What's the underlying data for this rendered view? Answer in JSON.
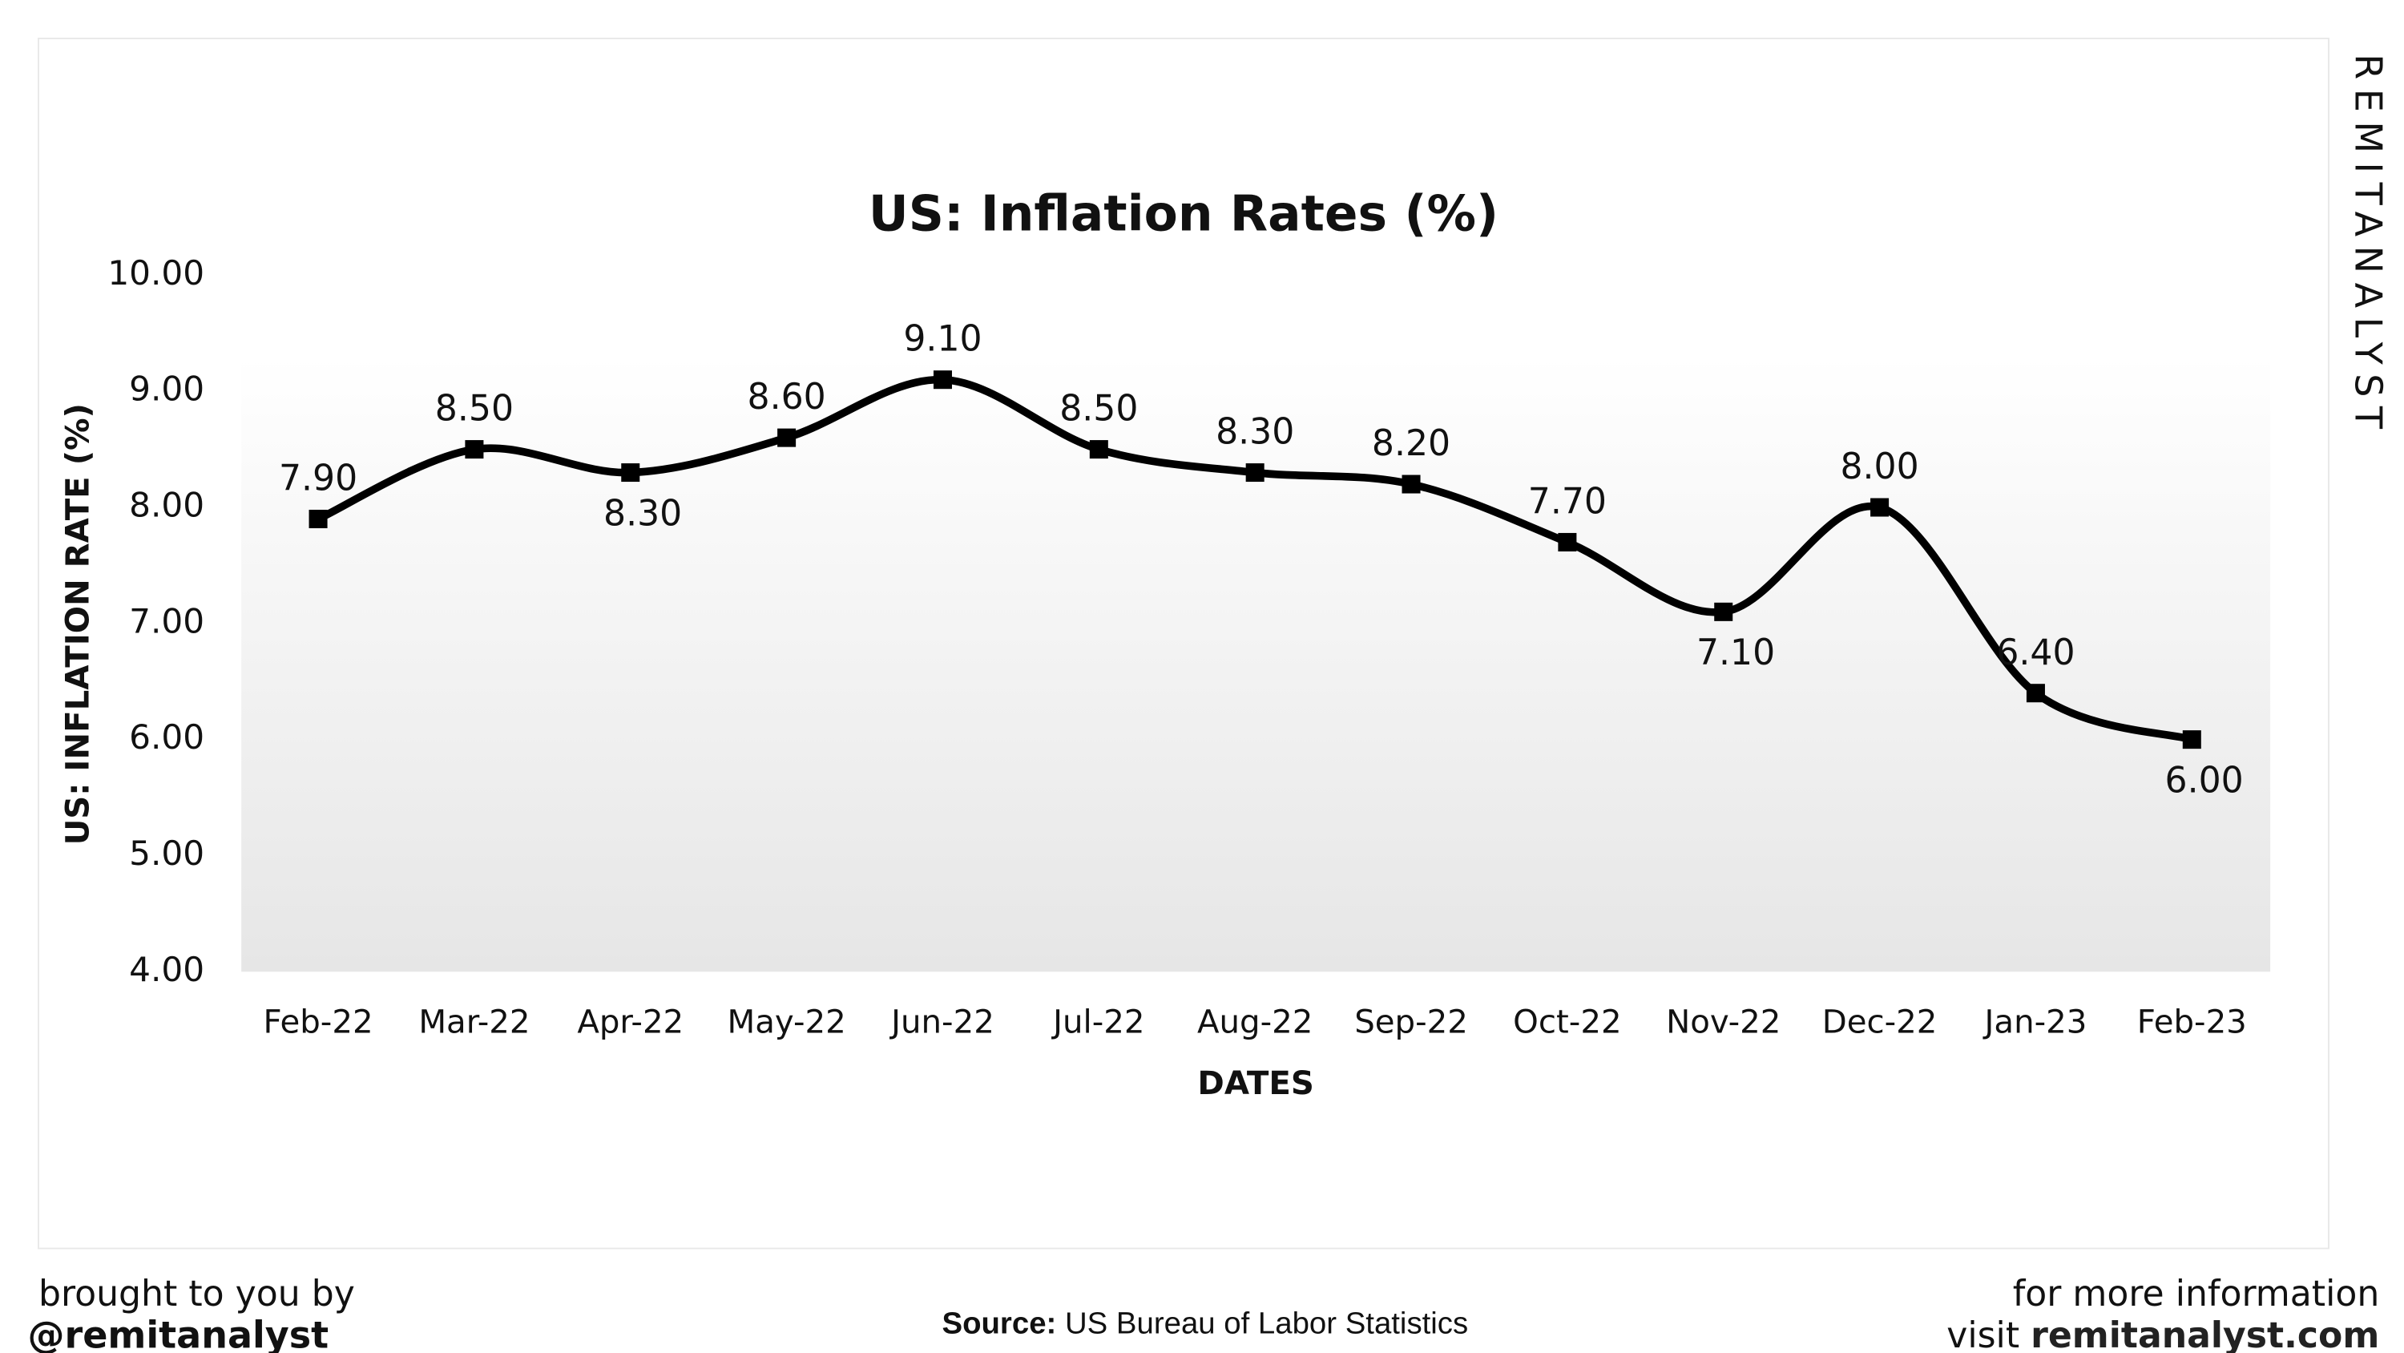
{
  "chart_data": {
    "type": "line",
    "title": "US: Inflation Rates (%)",
    "x_label": "DATES",
    "y_label": "US: INFLATION RATE (%)",
    "categories": [
      "Feb-22",
      "Mar-22",
      "Apr-22",
      "May-22",
      "Jun-22",
      "Jul-22",
      "Aug-22",
      "Sep-22",
      "Oct-22",
      "Nov-22",
      "Dec-22",
      "Jan-23",
      "Feb-23"
    ],
    "series": [
      {
        "name": "US: Inflation Rate",
        "color": "#000000",
        "values": [
          7.9,
          8.5,
          8.3,
          8.6,
          9.1,
          8.5,
          8.3,
          8.2,
          7.7,
          7.1,
          8.0,
          6.4,
          6.0
        ],
        "value_labels": [
          "7.90",
          "8.50",
          "8.30",
          "8.60",
          "9.10",
          "8.50",
          "8.30",
          "8.20",
          "7.70",
          "7.10",
          "8.00",
          "6.40",
          "6.00"
        ]
      }
    ],
    "ylim": [
      4,
      10
    ],
    "yticks": [
      {
        "value": 4,
        "label": "4.00"
      },
      {
        "value": 5,
        "label": "5.00"
      },
      {
        "value": 6,
        "label": "6.00"
      },
      {
        "value": 7,
        "label": "7.00"
      },
      {
        "value": 8,
        "label": "8.00"
      },
      {
        "value": 9,
        "label": "9.00"
      },
      {
        "value": 10,
        "label": "10.00"
      }
    ],
    "grid": false,
    "legend": false
  },
  "watermark": "REMITANALYST",
  "footer": {
    "left_line1": "brought to you by",
    "left_line2": "@remitanalyst",
    "source_label": "Source:",
    "source": "US Bureau of Labor Statistics",
    "right_line1": "for more information",
    "right_prefix": "visit",
    "right_link": "remitanalyst.com"
  }
}
